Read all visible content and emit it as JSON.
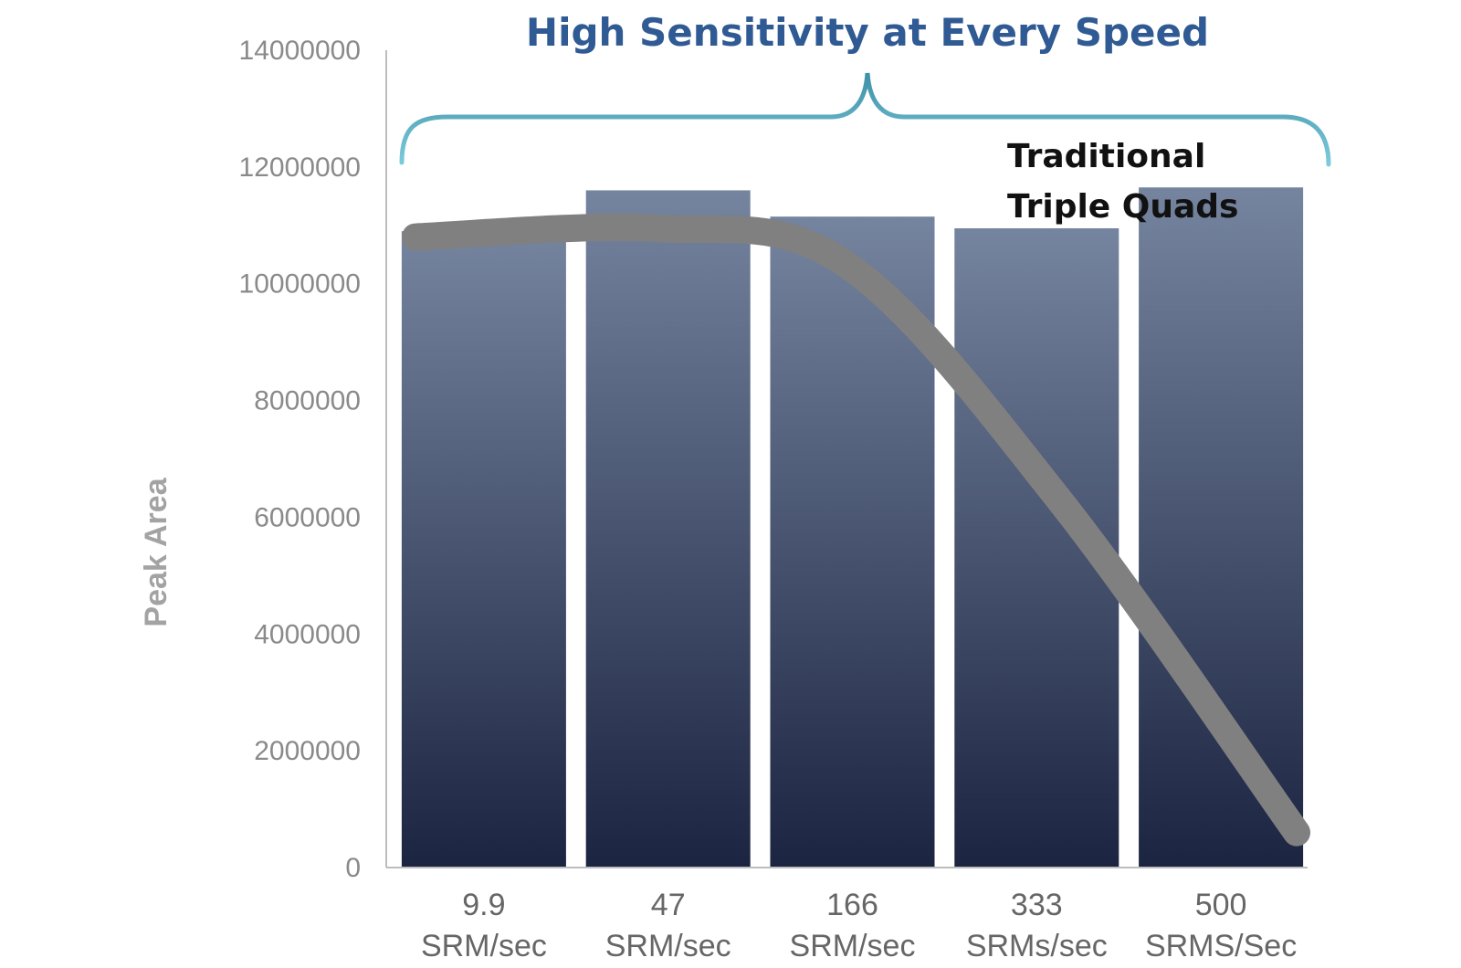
{
  "chart_data": {
    "type": "bar",
    "title": "High Sensitivity at Every Speed",
    "ylabel": "Peak Area",
    "xlabel": "",
    "ylim": [
      0,
      14000000
    ],
    "yticks": [
      "0",
      "2000000",
      "4000000",
      "6000000",
      "8000000",
      "10000000",
      "12000000",
      "14000000"
    ],
    "categories": [
      [
        "9.9",
        "SRM/sec"
      ],
      [
        "47",
        "SRM/sec"
      ],
      [
        "166",
        "SRM/sec"
      ],
      [
        "333",
        "SRMs/sec"
      ],
      [
        "500",
        "SRMS/Sec"
      ]
    ],
    "values": [
      10900000,
      11600000,
      11150000,
      10950000,
      11650000
    ],
    "annotation": [
      "Traditional",
      "Triple Quads"
    ],
    "trend_values": [
      10800000,
      10950000,
      10350000,
      6300000,
      600000
    ],
    "grid": false,
    "colors": {
      "bar_top": "#75849f",
      "bar_bottom": "#1b2440",
      "trend": "#808080",
      "brace": "#5bb7cd",
      "title": "#2f5a93"
    }
  }
}
